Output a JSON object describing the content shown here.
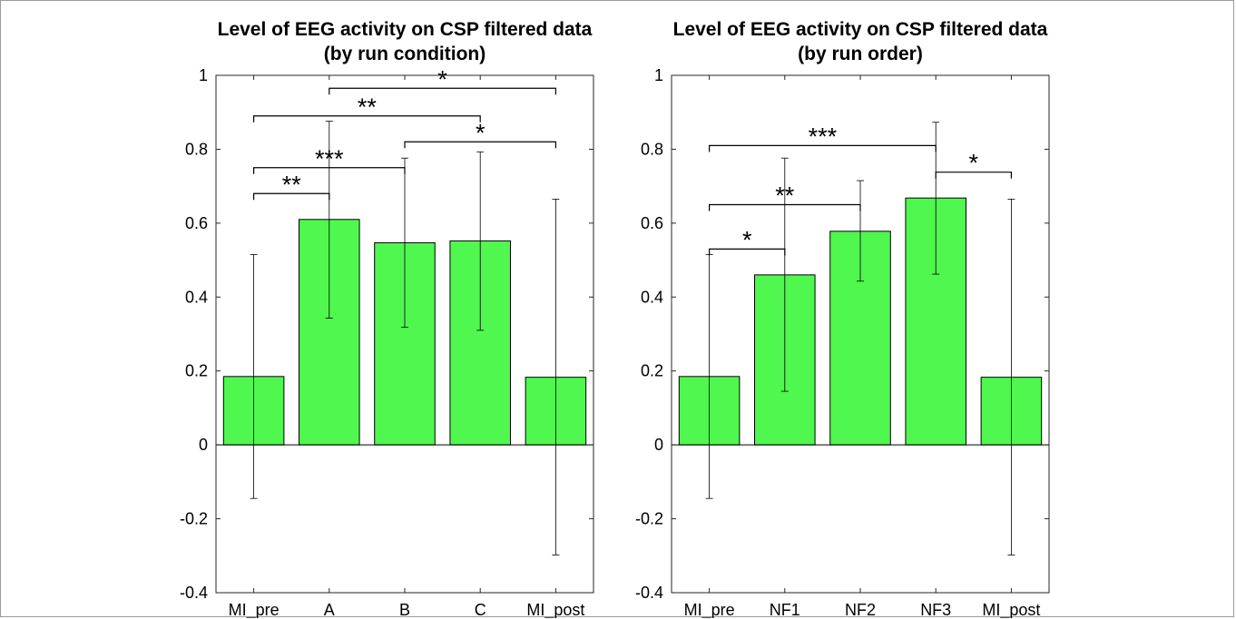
{
  "chart_data": [
    {
      "type": "bar",
      "title": "Level of EEG activity on CSP filtered data",
      "subtitle": "(by run condition)",
      "categories": [
        "MI_pre",
        "A",
        "B",
        "C",
        "MI_post"
      ],
      "values": [
        0.185,
        0.61,
        0.547,
        0.552,
        0.183
      ],
      "error_low": [
        -0.145,
        0.343,
        0.318,
        0.31,
        -0.298
      ],
      "error_high": [
        0.515,
        0.876,
        0.776,
        0.793,
        0.665
      ],
      "ylim": [
        -0.4,
        1
      ],
      "yticks": [
        "-0.4",
        "-0.2",
        "0",
        "0.2",
        "0.4",
        "0.6",
        "0.8",
        "1"
      ],
      "bar_color": "#4ff74f",
      "significance": [
        {
          "from": 0,
          "to": 1,
          "label": "**",
          "y": 0.68
        },
        {
          "from": 0,
          "to": 2,
          "label": "***",
          "y": 0.75
        },
        {
          "from": 0,
          "to": 3,
          "label": "**",
          "y": 0.89
        },
        {
          "from": 1,
          "to": 4,
          "label": "*",
          "y": 0.965
        },
        {
          "from": 2,
          "to": 4,
          "label": "*",
          "y": 0.82
        }
      ]
    },
    {
      "type": "bar",
      "title": "Level of EEG activity on CSP filtered data",
      "subtitle": "(by run order)",
      "categories": [
        "MI_pre",
        "NF1",
        "NF2",
        "NF3",
        "MI_post"
      ],
      "values": [
        0.185,
        0.46,
        0.578,
        0.668,
        0.183
      ],
      "error_low": [
        -0.145,
        0.145,
        0.443,
        0.462,
        -0.298
      ],
      "error_high": [
        0.515,
        0.776,
        0.715,
        0.873,
        0.665
      ],
      "ylim": [
        -0.4,
        1
      ],
      "yticks": [
        "-0.4",
        "-0.2",
        "0",
        "0.2",
        "0.4",
        "0.6",
        "0.8",
        "1"
      ],
      "bar_color": "#4ff74f",
      "significance": [
        {
          "from": 0,
          "to": 1,
          "label": "*",
          "y": 0.53
        },
        {
          "from": 0,
          "to": 2,
          "label": "**",
          "y": 0.65
        },
        {
          "from": 0,
          "to": 3,
          "label": "***",
          "y": 0.81
        },
        {
          "from": 3,
          "to": 4,
          "label": "*",
          "y": 0.738
        }
      ]
    }
  ]
}
